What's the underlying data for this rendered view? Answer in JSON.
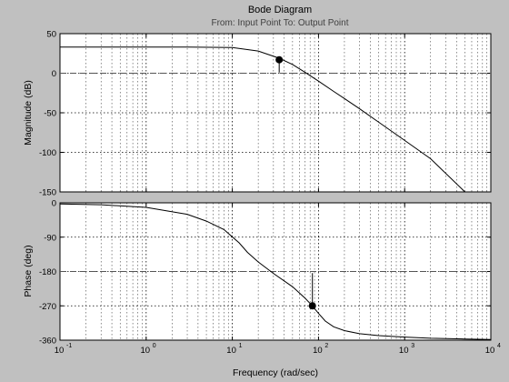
{
  "chart_data": {
    "type": "line",
    "title": "Bode Diagram",
    "subtitle": "From: Input Point  To: Output Point",
    "xlabel": "Frequency  (rad/sec)",
    "xscale": "log",
    "xlim": [
      0.1,
      10000
    ],
    "grid": true,
    "x_ticks": [
      {
        "base": "10",
        "exp": "-1"
      },
      {
        "base": "10",
        "exp": "0"
      },
      {
        "base": "10",
        "exp": "1"
      },
      {
        "base": "10",
        "exp": "2"
      },
      {
        "base": "10",
        "exp": "3"
      },
      {
        "base": "10",
        "exp": "4"
      }
    ],
    "panels": [
      {
        "name": "magnitude",
        "ylabel": "Magnitude (dB)",
        "ylim": [
          -150,
          50
        ],
        "yticks": [
          50,
          0,
          -50,
          -100,
          -150
        ],
        "ytick_labels": [
          "50",
          "0",
          "-50",
          "-100",
          "-150"
        ],
        "series": [
          {
            "x": [
              0.1,
              0.5,
              1,
              3,
              10,
              20,
              35,
              50,
              70,
              100,
              150,
              200,
              300,
              500,
              1000,
              2000,
              5000
            ],
            "y": [
              33,
              33,
              33,
              33,
              32.5,
              28,
              19,
              11,
              1,
              -10,
              -23,
              -32,
              -45,
              -62,
              -85,
              -108,
              -150
            ]
          }
        ],
        "marker": {
          "x": 35,
          "y": 17
        },
        "reference_line_y": 0
      },
      {
        "name": "phase",
        "ylabel": "Phase (deg)",
        "ylim": [
          -360,
          0
        ],
        "yticks": [
          0,
          -90,
          -180,
          -270,
          -360
        ],
        "ytick_labels": [
          "0",
          "-90",
          "-180",
          "-270",
          "-360"
        ],
        "series": [
          {
            "x": [
              0.1,
              0.3,
              1,
              3,
              5,
              8,
              12,
              15,
              20,
              30,
              50,
              70,
              85,
              100,
              120,
              150,
              200,
              300,
              500,
              1000,
              2000,
              5000,
              10000
            ],
            "y": [
              -3,
              -5,
              -12,
              -30,
              -48,
              -70,
              -105,
              -130,
              -155,
              -185,
              -220,
              -250,
              -270,
              -290,
              -310,
              -325,
              -335,
              -343,
              -348,
              -352,
              -355,
              -357,
              -358
            ]
          }
        ],
        "marker": {
          "x": 85,
          "y": -270
        },
        "reference_line_y": -180
      }
    ]
  }
}
